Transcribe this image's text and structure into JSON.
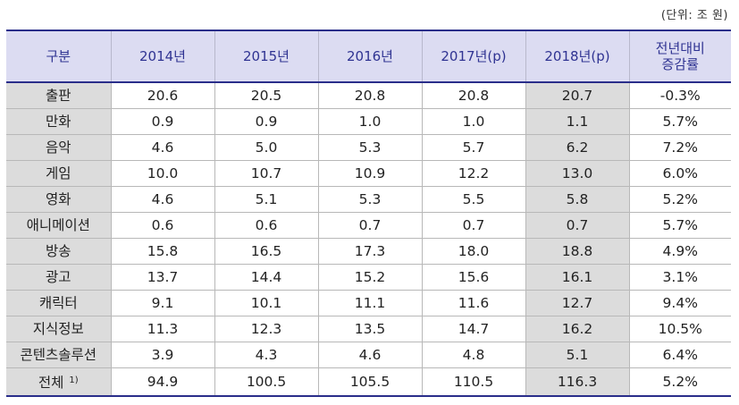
{
  "unit_note": "(단위: 조 원)",
  "headers": [
    "구분",
    "2014년",
    "2015년",
    "2016년",
    "2017년(p)",
    "2018년(p)",
    "전년대비",
    "증감률"
  ],
  "rows": [
    {
      "label": "출판",
      "sup": "",
      "values": [
        "20.6",
        "20.5",
        "20.8",
        "20.8",
        "20.7",
        "-0.3%"
      ]
    },
    {
      "label": "만화",
      "sup": "",
      "values": [
        "0.9",
        "0.9",
        "1.0",
        "1.0",
        "1.1",
        "5.7%"
      ]
    },
    {
      "label": "음악",
      "sup": "",
      "values": [
        "4.6",
        "5.0",
        "5.3",
        "5.7",
        "6.2",
        "7.2%"
      ]
    },
    {
      "label": "게임",
      "sup": "",
      "values": [
        "10.0",
        "10.7",
        "10.9",
        "12.2",
        "13.0",
        "6.0%"
      ]
    },
    {
      "label": "영화",
      "sup": "",
      "values": [
        "4.6",
        "5.1",
        "5.3",
        "5.5",
        "5.8",
        "5.2%"
      ]
    },
    {
      "label": "애니메이션",
      "sup": "",
      "values": [
        "0.6",
        "0.6",
        "0.7",
        "0.7",
        "0.7",
        "5.7%"
      ]
    },
    {
      "label": "방송",
      "sup": "",
      "values": [
        "15.8",
        "16.5",
        "17.3",
        "18.0",
        "18.8",
        "4.9%"
      ]
    },
    {
      "label": "광고",
      "sup": "",
      "values": [
        "13.7",
        "14.4",
        "15.2",
        "15.6",
        "16.1",
        "3.1%"
      ]
    },
    {
      "label": "캐릭터",
      "sup": "",
      "values": [
        "9.1",
        "10.1",
        "11.1",
        "11.6",
        "12.7",
        "9.4%"
      ]
    },
    {
      "label": "지식정보",
      "sup": "",
      "values": [
        "11.3",
        "12.3",
        "13.5",
        "14.7",
        "16.2",
        "10.5%"
      ]
    },
    {
      "label": "콘텐츠솔루션",
      "sup": "",
      "values": [
        "3.9",
        "4.3",
        "4.6",
        "4.8",
        "5.1",
        "6.4%"
      ]
    },
    {
      "label": "전체",
      "sup": "1)",
      "values": [
        "94.9",
        "100.5",
        "105.5",
        "110.5",
        "116.3",
        "5.2%"
      ]
    }
  ]
}
